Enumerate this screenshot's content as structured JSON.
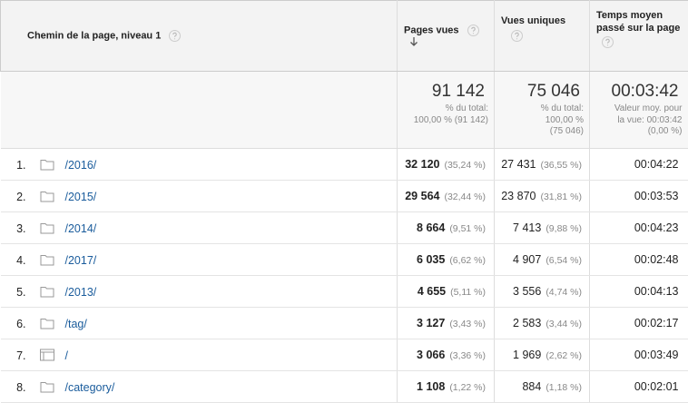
{
  "header": {
    "dimension": "Chemin de la page, niveau 1",
    "columns": [
      "Pages vues",
      "Vues uniques",
      "Temps moyen passé sur la page"
    ]
  },
  "totals": [
    {
      "value": "91 142",
      "note": [
        "% du total:",
        "100,00 % (91 142)"
      ]
    },
    {
      "value": "75 046",
      "note": [
        "% du total:",
        "100,00 %",
        "(75 046)"
      ]
    },
    {
      "value": "00:03:42",
      "note": [
        "Valeur moy. pour",
        "la vue: 00:03:42",
        "(0,00 %)"
      ]
    }
  ],
  "rows": [
    {
      "index": "1.",
      "icon": "folder",
      "path": "/2016/",
      "pages": "32 120",
      "pages_pct": "(35,24 %)",
      "uniques": "27 431",
      "uniques_pct": "(36,55 %)",
      "time": "00:04:22"
    },
    {
      "index": "2.",
      "icon": "folder",
      "path": "/2015/",
      "pages": "29 564",
      "pages_pct": "(32,44 %)",
      "uniques": "23 870",
      "uniques_pct": "(31,81 %)",
      "time": "00:03:53"
    },
    {
      "index": "3.",
      "icon": "folder",
      "path": "/2014/",
      "pages": "8 664",
      "pages_pct": "(9,51 %)",
      "uniques": "7 413",
      "uniques_pct": "(9,88 %)",
      "time": "00:04:23"
    },
    {
      "index": "4.",
      "icon": "folder",
      "path": "/2017/",
      "pages": "6 035",
      "pages_pct": "(6,62 %)",
      "uniques": "4 907",
      "uniques_pct": "(6,54 %)",
      "time": "00:02:48"
    },
    {
      "index": "5.",
      "icon": "folder",
      "path": "/2013/",
      "pages": "4 655",
      "pages_pct": "(5,11 %)",
      "uniques": "3 556",
      "uniques_pct": "(4,74 %)",
      "time": "00:04:13"
    },
    {
      "index": "6.",
      "icon": "folder",
      "path": "/tag/",
      "pages": "3 127",
      "pages_pct": "(3,43 %)",
      "uniques": "2 583",
      "uniques_pct": "(3,44 %)",
      "time": "00:02:17"
    },
    {
      "index": "7.",
      "icon": "page",
      "path": "/",
      "pages": "3 066",
      "pages_pct": "(3,36 %)",
      "uniques": "1 969",
      "uniques_pct": "(2,62 %)",
      "time": "00:03:49"
    },
    {
      "index": "8.",
      "icon": "folder",
      "path": "/category/",
      "pages": "1 108",
      "pages_pct": "(1,22 %)",
      "uniques": "884",
      "uniques_pct": "(1,18 %)",
      "time": "00:02:01"
    }
  ]
}
